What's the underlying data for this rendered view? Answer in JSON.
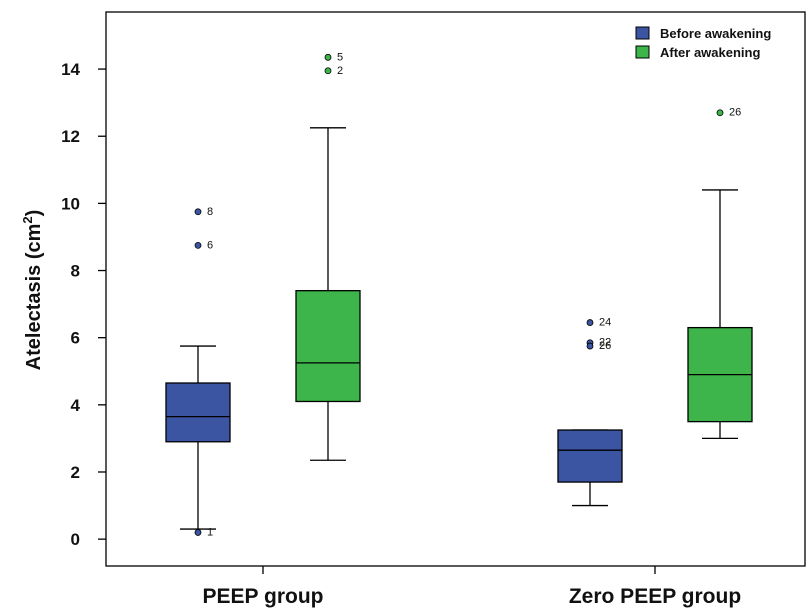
{
  "chart_data": {
    "type": "boxplot",
    "title": "",
    "xlabel": "",
    "ylabel_main": "Atelectasis (cm",
    "ylabel_sup": "2",
    "ylabel_close": ")",
    "ylim": [
      -0.8,
      15.7
    ],
    "yticks": [
      0,
      2,
      4,
      6,
      8,
      10,
      12,
      14
    ],
    "grid": false,
    "legend_position": "top-right",
    "categories": [
      "PEEP group",
      "Zero PEEP group"
    ],
    "series": [
      {
        "name": "Before awakening",
        "color": "#3b55a3",
        "boxes": [
          {
            "category": "PEEP group",
            "min": 0.3,
            "q1": 2.9,
            "median": 3.65,
            "q3": 4.65,
            "max": 5.75,
            "outliers": [
              {
                "value": 9.75,
                "label": "8"
              },
              {
                "value": 8.75,
                "label": "6"
              },
              {
                "value": 0.2,
                "label": "1"
              }
            ]
          },
          {
            "category": "Zero PEEP group",
            "min": 1.0,
            "q1": 1.7,
            "median": 2.65,
            "q3": 3.25,
            "max": 3.25,
            "outliers": [
              {
                "value": 6.45,
                "label": "24"
              },
              {
                "value": 5.85,
                "label": "22"
              },
              {
                "value": 5.75,
                "label": "26"
              }
            ]
          }
        ]
      },
      {
        "name": "After awakening",
        "color": "#3db54a",
        "boxes": [
          {
            "category": "PEEP group",
            "min": 2.35,
            "q1": 4.1,
            "median": 5.25,
            "q3": 7.4,
            "max": 12.25,
            "outliers": [
              {
                "value": 14.35,
                "label": "5"
              },
              {
                "value": 13.95,
                "label": "2"
              }
            ]
          },
          {
            "category": "Zero PEEP group",
            "min": 3.0,
            "q1": 3.5,
            "median": 4.9,
            "q3": 6.3,
            "max": 10.4,
            "outliers": [
              {
                "value": 12.7,
                "label": "26"
              }
            ]
          }
        ]
      }
    ]
  }
}
